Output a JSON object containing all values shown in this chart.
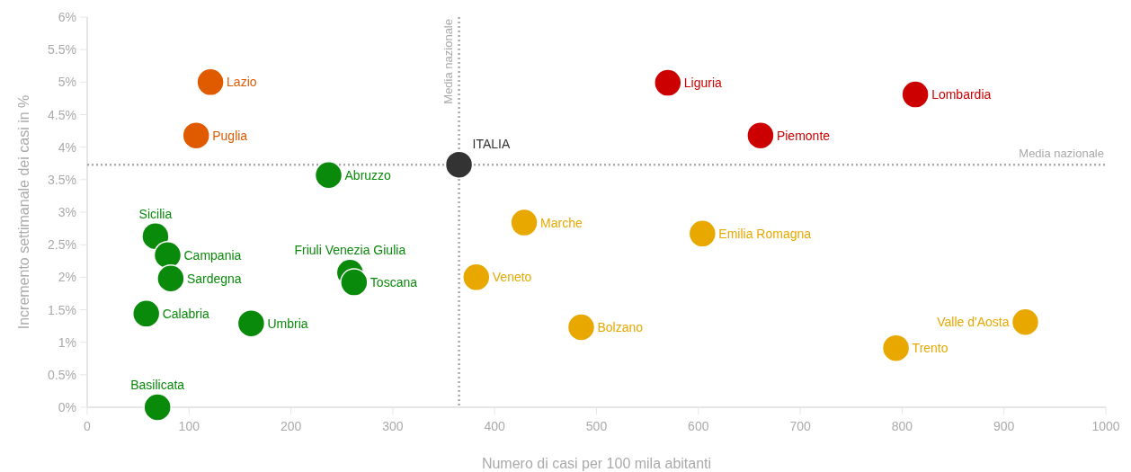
{
  "chart_data": {
    "type": "scatter",
    "xlabel": "Numero di casi per 100 mila abitanti",
    "ylabel": "Incremento settimanale dei casi in %",
    "xlim": [
      0,
      1000
    ],
    "xticks": [
      0,
      100,
      200,
      300,
      400,
      500,
      600,
      700,
      800,
      900,
      1000
    ],
    "ylim": [
      0,
      6
    ],
    "yticks": [
      {
        "value": 0,
        "label": "0%"
      },
      {
        "value": 0.5,
        "label": "0.5%"
      },
      {
        "value": 1,
        "label": "1%"
      },
      {
        "value": 1.5,
        "label": "1.5%"
      },
      {
        "value": 2,
        "label": "2%"
      },
      {
        "value": 2.5,
        "label": "2.5%"
      },
      {
        "value": 3,
        "label": "3%"
      },
      {
        "value": 3.5,
        "label": "3.5%"
      },
      {
        "value": 4,
        "label": "4%"
      },
      {
        "value": 4.5,
        "label": "4.5%"
      },
      {
        "value": 5,
        "label": "5%"
      },
      {
        "value": 5.5,
        "label": "5.5%"
      },
      {
        "value": 6,
        "label": "6%"
      }
    ],
    "grid": false,
    "marker": "circle",
    "ref_lines": [
      {
        "axis": "x",
        "value": 365,
        "label": "Media nazionale",
        "color": "#aaaaaa",
        "line_style": "dotted"
      },
      {
        "axis": "y",
        "value": 3.73,
        "label": "Media nazionale",
        "color": "#aaaaaa",
        "line_style": "dotted"
      }
    ],
    "series": [
      {
        "name": "Lazio",
        "color": "#e05a00",
        "x": [
          121
        ],
        "values": [
          5.0
        ]
      },
      {
        "name": "Puglia",
        "color": "#e05a00",
        "x": [
          107
        ],
        "values": [
          4.18
        ]
      },
      {
        "name": "Abruzzo",
        "color": "#0a8a0a",
        "x": [
          237
        ],
        "values": [
          3.57
        ]
      },
      {
        "name": "Liguria",
        "color": "#cc0000",
        "x": [
          570
        ],
        "values": [
          4.99
        ]
      },
      {
        "name": "Lombardia",
        "color": "#cc0000",
        "x": [
          813
        ],
        "values": [
          4.81
        ]
      },
      {
        "name": "Piemonte",
        "color": "#cc0000",
        "x": [
          661
        ],
        "values": [
          4.18
        ]
      },
      {
        "name": "Marche",
        "color": "#e8a800",
        "x": [
          429
        ],
        "values": [
          2.84
        ]
      },
      {
        "name": "Emilia Romagna",
        "color": "#e8a800",
        "x": [
          604
        ],
        "values": [
          2.67
        ]
      },
      {
        "name": "Veneto",
        "color": "#e8a800",
        "x": [
          382
        ],
        "values": [
          2.0
        ]
      },
      {
        "name": "Bolzano",
        "color": "#e8a800",
        "x": [
          485
        ],
        "values": [
          1.23
        ]
      },
      {
        "name": "Trento",
        "color": "#e8a800",
        "x": [
          794
        ],
        "values": [
          0.91
        ]
      },
      {
        "name": "Valle d'Aosta",
        "color": "#e8a800",
        "x": [
          921
        ],
        "values": [
          1.31
        ]
      },
      {
        "name": "Sicilia",
        "color": "#0a8a0a",
        "x": [
          67
        ],
        "values": [
          2.63
        ]
      },
      {
        "name": "Campania",
        "color": "#0a8a0a",
        "x": [
          79
        ],
        "values": [
          2.34
        ]
      },
      {
        "name": "Sardegna",
        "color": "#0a8a0a",
        "x": [
          82
        ],
        "values": [
          1.98
        ]
      },
      {
        "name": "Calabria",
        "color": "#0a8a0a",
        "x": [
          58
        ],
        "values": [
          1.44
        ]
      },
      {
        "name": "Umbria",
        "color": "#0a8a0a",
        "x": [
          161
        ],
        "values": [
          1.29
        ]
      },
      {
        "name": "Friuli Venezia Giulia",
        "color": "#0a8a0a",
        "x": [
          258
        ],
        "values": [
          2.07
        ]
      },
      {
        "name": "Toscana",
        "color": "#0a8a0a",
        "x": [
          262
        ],
        "values": [
          1.92
        ]
      },
      {
        "name": "Basilicata",
        "color": "#0a8a0a",
        "x": [
          69
        ],
        "values": [
          0.0
        ]
      },
      {
        "name": "ITALIA",
        "color": "#333333",
        "x": [
          365
        ],
        "values": [
          3.73
        ]
      }
    ]
  }
}
